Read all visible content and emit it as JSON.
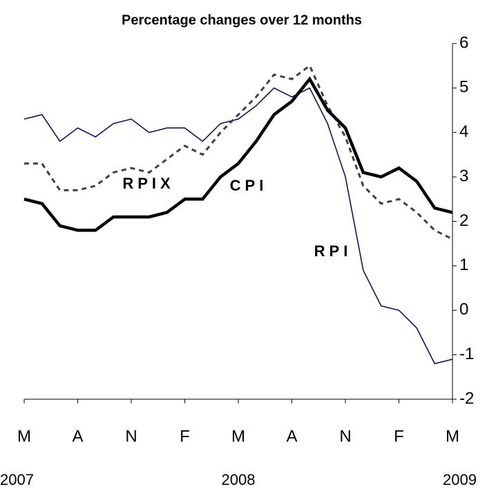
{
  "chart_data": {
    "type": "line",
    "title": "Percentage changes over 12 months",
    "categories": [
      "M",
      null,
      null,
      "A",
      null,
      null,
      "N",
      null,
      null,
      "F",
      null,
      null,
      "M",
      null,
      null,
      "A",
      null,
      null,
      "N",
      null,
      null,
      "F",
      null,
      null,
      "M"
    ],
    "year_labels": [
      "2007",
      "2008",
      "2009"
    ],
    "series": [
      {
        "name": "RPI",
        "color": "#000080",
        "values": [
          4.3,
          4.4,
          3.8,
          4.1,
          3.9,
          4.2,
          4.3,
          4.0,
          4.1,
          4.1,
          3.8,
          4.2,
          4.3,
          4.6,
          5.0,
          4.8,
          5.0,
          4.2,
          3.0,
          0.9,
          0.1,
          0.0,
          -0.4,
          -1.2,
          -1.1
        ]
      },
      {
        "name": "RPIX",
        "color": "#404040",
        "values": [
          3.3,
          3.3,
          2.7,
          2.7,
          2.8,
          3.1,
          3.2,
          3.1,
          3.4,
          3.7,
          3.5,
          4.0,
          4.4,
          4.8,
          5.3,
          5.2,
          5.5,
          4.6,
          3.9,
          2.8,
          2.4,
          2.5,
          2.2,
          1.8,
          1.6
        ]
      },
      {
        "name": "CPI",
        "color": "#000000",
        "values": [
          2.5,
          2.4,
          1.9,
          1.8,
          1.8,
          2.1,
          2.1,
          2.1,
          2.2,
          2.5,
          2.5,
          3.0,
          3.3,
          3.8,
          4.4,
          4.7,
          5.2,
          4.5,
          4.1,
          3.1,
          3.0,
          3.2,
          2.9,
          2.3,
          2.2
        ]
      }
    ],
    "ylim": [
      -2,
      6
    ],
    "yticks": [
      -2,
      -1,
      0,
      1,
      2,
      3,
      4,
      5,
      6
    ],
    "grid": false
  }
}
